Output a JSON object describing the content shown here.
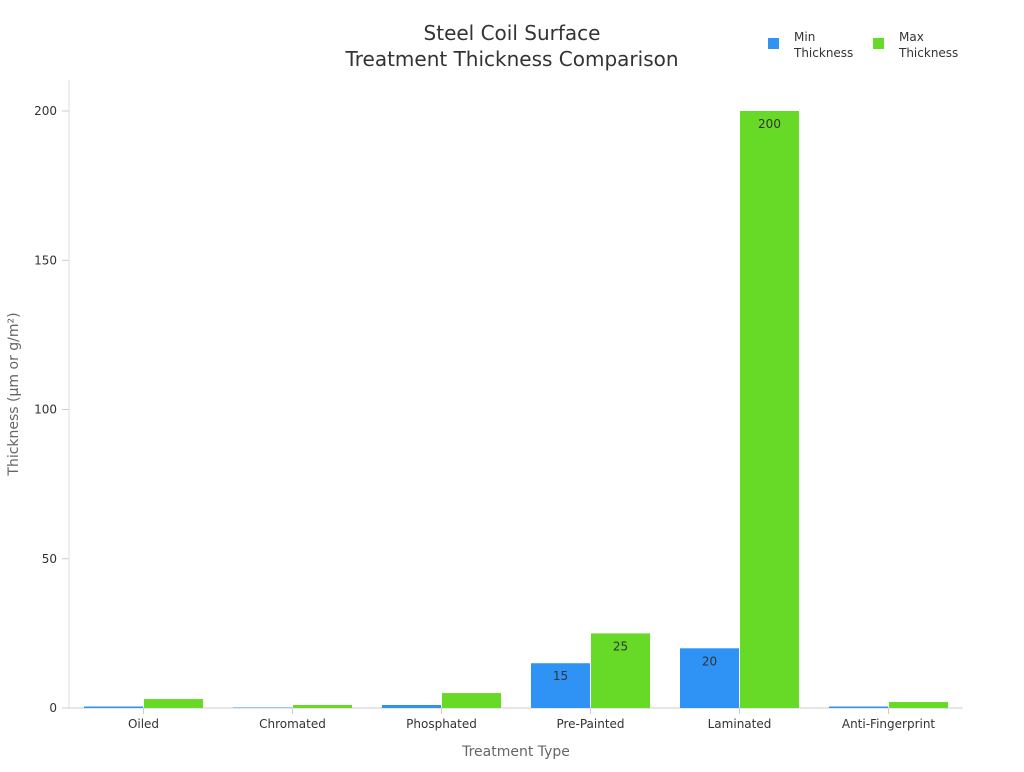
{
  "chart_data": {
    "type": "bar",
    "title_lines": [
      "Steel Coil Surface",
      "Treatment Thickness Comparison"
    ],
    "xlabel": "Treatment Type",
    "ylabel": "Thickness (µm or g/m²)",
    "categories": [
      "Oiled",
      "Chromated",
      "Phosphated",
      "Pre-Painted",
      "Laminated",
      "Anti-Fingerprint"
    ],
    "series": [
      {
        "name": "Min Thickness",
        "legend_lines": [
          "Min",
          "Thickness"
        ],
        "color": "#2e93f5",
        "values": [
          0.5,
          0.05,
          1,
          15,
          20,
          0.5
        ]
      },
      {
        "name": "Max Thickness",
        "legend_lines": [
          "Max",
          "Thickness"
        ],
        "color": "#66da26",
        "values": [
          3,
          1,
          5,
          25,
          200,
          2
        ]
      }
    ],
    "ylim": [
      0,
      210
    ],
    "yticks": [
      0,
      50,
      100,
      150,
      200
    ],
    "grid": false,
    "legend": "top-right"
  }
}
